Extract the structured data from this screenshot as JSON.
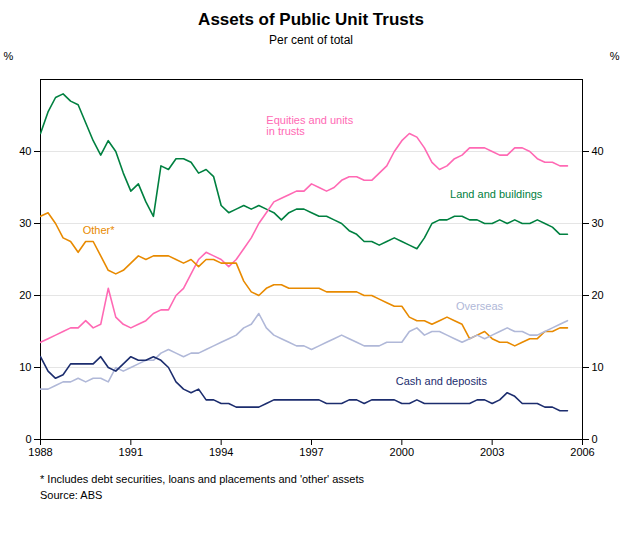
{
  "chart_data": {
    "type": "line",
    "title": "Assets of Public Unit Trusts",
    "subtitle": "Per cent of total",
    "ylabel": "%",
    "y2label": "%",
    "footnote": "*  Includes debt securities, loans and placements and 'other' assets",
    "source": "Source: ABS",
    "xlim": [
      1988,
      2006
    ],
    "xticks": [
      1988,
      1991,
      1994,
      1997,
      2000,
      2003,
      2006
    ],
    "ylim": [
      0,
      50
    ],
    "yticks": [
      0,
      10,
      20,
      30,
      40
    ],
    "y2lim": [
      0,
      50
    ],
    "y2ticks": [
      0,
      10,
      20,
      30,
      40
    ],
    "grid": true,
    "x": [
      1988.0,
      1988.25,
      1988.5,
      1988.75,
      1989.0,
      1989.25,
      1989.5,
      1989.75,
      1990.0,
      1990.25,
      1990.5,
      1990.75,
      1991.0,
      1991.25,
      1991.5,
      1991.75,
      1992.0,
      1992.25,
      1992.5,
      1992.75,
      1993.0,
      1993.25,
      1993.5,
      1993.75,
      1994.0,
      1994.25,
      1994.5,
      1994.75,
      1995.0,
      1995.25,
      1995.5,
      1995.75,
      1996.0,
      1996.25,
      1996.5,
      1996.75,
      1997.0,
      1997.25,
      1997.5,
      1997.75,
      1998.0,
      1998.25,
      1998.5,
      1998.75,
      1999.0,
      1999.25,
      1999.5,
      1999.75,
      2000.0,
      2000.25,
      2000.5,
      2000.75,
      2001.0,
      2001.25,
      2001.5,
      2001.75,
      2002.0,
      2002.25,
      2002.5,
      2002.75,
      2003.0,
      2003.25,
      2003.5,
      2003.75,
      2004.0,
      2004.25,
      2004.5,
      2004.75,
      2005.0,
      2005.25,
      2005.5
    ],
    "series": [
      {
        "name": "Land and buildings",
        "color": "#008040",
        "values": [
          42.5,
          45.5,
          47.5,
          48.0,
          47.0,
          46.5,
          44.0,
          41.5,
          39.5,
          41.5,
          40.0,
          37.0,
          34.5,
          35.5,
          33.0,
          31.0,
          38.0,
          37.5,
          39.0,
          39.0,
          38.5,
          37.0,
          37.5,
          36.5,
          32.5,
          31.5,
          32.0,
          32.5,
          32.0,
          32.5,
          32.0,
          31.5,
          30.5,
          31.5,
          32.0,
          32.0,
          31.5,
          31.0,
          31.0,
          30.5,
          30.0,
          29.0,
          28.5,
          27.5,
          27.5,
          27.0,
          27.5,
          28.0,
          27.5,
          27.0,
          26.5,
          28.0,
          30.0,
          30.5,
          30.5,
          31.0,
          31.0,
          30.5,
          30.5,
          30.0,
          30.0,
          30.5,
          30.0,
          30.5,
          30.0,
          30.0,
          30.5,
          30.0,
          29.5,
          28.5,
          28.5
        ]
      },
      {
        "name": "Equities and units\nin trusts",
        "color": "#FF69B4",
        "values": [
          13.5,
          14.0,
          14.5,
          15.0,
          15.5,
          15.5,
          16.5,
          15.5,
          16.0,
          21.0,
          17.0,
          16.0,
          15.5,
          16.0,
          16.5,
          17.5,
          18.0,
          18.0,
          20.0,
          21.0,
          23.0,
          25.0,
          26.0,
          25.5,
          25.0,
          24.0,
          25.0,
          26.5,
          28.0,
          30.0,
          31.5,
          33.0,
          33.5,
          34.0,
          34.5,
          34.5,
          35.5,
          35.0,
          34.5,
          35.0,
          36.0,
          36.5,
          36.5,
          36.0,
          36.0,
          37.0,
          38.0,
          40.0,
          41.5,
          42.5,
          42.0,
          40.5,
          38.5,
          37.5,
          38.0,
          39.0,
          39.5,
          40.5,
          40.5,
          40.5,
          40.0,
          39.5,
          39.5,
          40.5,
          40.5,
          40.0,
          39.0,
          38.5,
          38.5,
          38.0,
          38.0
        ]
      },
      {
        "name": "Other*",
        "color": "#E88A00",
        "values": [
          31.0,
          31.5,
          30.0,
          28.0,
          27.5,
          26.0,
          27.5,
          27.5,
          25.5,
          23.5,
          23.0,
          23.5,
          24.5,
          25.5,
          25.0,
          25.5,
          25.5,
          25.5,
          25.0,
          24.5,
          25.0,
          24.0,
          25.0,
          25.0,
          24.5,
          24.5,
          24.5,
          22.0,
          20.5,
          20.0,
          21.0,
          21.5,
          21.5,
          21.0,
          21.0,
          21.0,
          21.0,
          21.0,
          20.5,
          20.5,
          20.5,
          20.5,
          20.5,
          20.0,
          20.0,
          19.5,
          19.0,
          18.5,
          18.5,
          17.0,
          16.5,
          16.5,
          16.0,
          16.5,
          17.0,
          16.5,
          16.0,
          14.0,
          14.5,
          15.0,
          14.0,
          13.5,
          13.5,
          13.0,
          13.5,
          14.0,
          14.0,
          15.0,
          15.0,
          15.5,
          15.5
        ]
      },
      {
        "name": "Overseas",
        "color": "#B0B8D8",
        "values": [
          7.0,
          7.0,
          7.5,
          8.0,
          8.0,
          8.5,
          8.0,
          8.5,
          8.5,
          8.0,
          10.0,
          9.5,
          10.0,
          10.5,
          11.0,
          11.0,
          12.0,
          12.5,
          12.0,
          11.5,
          12.0,
          12.0,
          12.5,
          13.0,
          13.5,
          14.0,
          14.5,
          15.5,
          16.0,
          17.5,
          15.5,
          14.5,
          14.0,
          13.5,
          13.0,
          13.0,
          12.5,
          13.0,
          13.5,
          14.0,
          14.5,
          14.0,
          13.5,
          13.0,
          13.0,
          13.0,
          13.5,
          13.5,
          13.5,
          15.0,
          15.5,
          14.5,
          15.0,
          15.0,
          14.5,
          14.0,
          13.5,
          14.0,
          14.5,
          14.0,
          14.5,
          15.0,
          15.5,
          15.0,
          15.0,
          14.5,
          14.5,
          15.0,
          15.5,
          16.0,
          16.5
        ]
      },
      {
        "name": "Cash and deposits",
        "color": "#1C2D6E",
        "values": [
          11.5,
          9.5,
          8.5,
          9.0,
          10.5,
          10.5,
          10.5,
          10.5,
          11.5,
          10.0,
          9.5,
          10.5,
          11.5,
          11.0,
          11.0,
          11.5,
          11.0,
          10.0,
          8.0,
          7.0,
          6.5,
          7.0,
          5.5,
          5.5,
          5.0,
          5.0,
          4.5,
          4.5,
          4.5,
          4.5,
          5.0,
          5.5,
          5.5,
          5.5,
          5.5,
          5.5,
          5.5,
          5.5,
          5.0,
          5.0,
          5.0,
          5.5,
          5.5,
          5.0,
          5.5,
          5.5,
          5.5,
          5.5,
          5.0,
          5.0,
          5.5,
          5.0,
          5.0,
          5.0,
          5.0,
          5.0,
          5.0,
          5.0,
          5.5,
          5.5,
          5.0,
          5.5,
          6.5,
          6.0,
          5.0,
          5.0,
          5.0,
          4.5,
          4.5,
          4.0,
          4.0
        ]
      }
    ],
    "annotations": [
      {
        "text": "Equities and units\nin trusts",
        "x": 1995.5,
        "y": 43.5,
        "color": "#FF69B4"
      },
      {
        "text": "Land and buildings",
        "x": 2001.6,
        "y": 34.0,
        "color": "#008040"
      },
      {
        "text": "Other*",
        "x": 1989.4,
        "y": 29.0,
        "color": "#E88A00"
      },
      {
        "text": "Overseas",
        "x": 2001.8,
        "y": 18.5,
        "color": "#B0B8D8"
      },
      {
        "text": "Cash and deposits",
        "x": 1999.8,
        "y": 8.0,
        "color": "#1C2D6E"
      }
    ]
  }
}
